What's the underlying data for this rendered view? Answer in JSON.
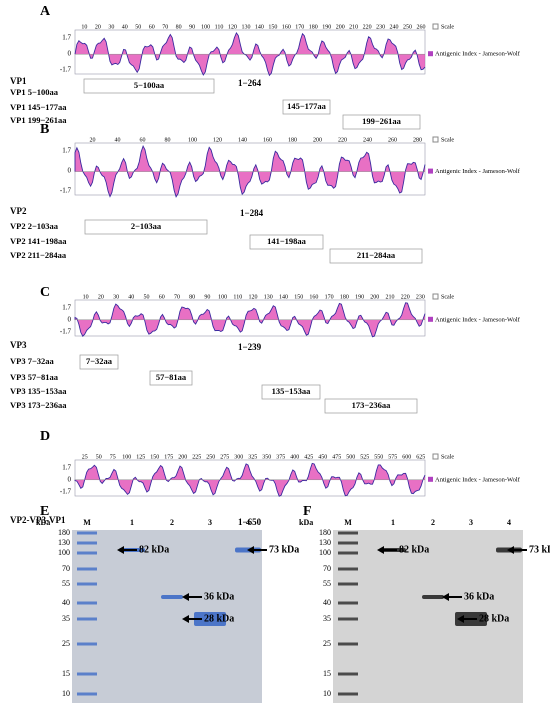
{
  "panels": [
    {
      "label": "A",
      "legend_scale": "Scale",
      "legend_index": "Antigenic Index - Jameson-Wolf",
      "yticks": [
        "1.7",
        "0",
        "-1.7"
      ],
      "xticks": [
        10,
        20,
        30,
        40,
        50,
        60,
        70,
        80,
        90,
        100,
        110,
        120,
        130,
        140,
        150,
        160,
        170,
        180,
        190,
        200,
        210,
        220,
        230,
        240,
        250,
        260
      ],
      "protein": "VP1",
      "range": "1−264",
      "fragments": [
        {
          "name": "VP1 5−100aa",
          "box": "5−100aa"
        },
        {
          "name": "VP1 145−177aa",
          "box": "145−177aa"
        },
        {
          "name": "VP1 199−261aa",
          "box": "199−261aa"
        }
      ]
    },
    {
      "label": "B",
      "legend_scale": "Scale",
      "legend_index": "Antigenic Index - Jameson-Wolf",
      "yticks": [
        "1.7",
        "0",
        "-1.7"
      ],
      "xticks": [
        20,
        40,
        60,
        80,
        100,
        120,
        140,
        160,
        180,
        200,
        220,
        240,
        260,
        280
      ],
      "protein": "VP2",
      "range": "1−284",
      "fragments": [
        {
          "name": "VP2 2−103aa",
          "box": "2−103aa"
        },
        {
          "name": "VP2 141−198aa",
          "box": "141−198aa"
        },
        {
          "name": "VP2 211−284aa",
          "box": "211−284aa"
        }
      ]
    },
    {
      "label": "C",
      "legend_scale": "Scale",
      "legend_index": "Antigenic Index - Jameson-Wolf",
      "yticks": [
        "1.7",
        "0",
        "-1.7"
      ],
      "xticks": [
        10,
        20,
        30,
        40,
        50,
        60,
        70,
        80,
        90,
        100,
        110,
        120,
        130,
        140,
        150,
        160,
        170,
        180,
        190,
        200,
        210,
        220,
        230
      ],
      "protein": "VP3",
      "range": "1−239",
      "fragments": [
        {
          "name": "VP3 7−32aa",
          "box": "7−32aa"
        },
        {
          "name": "VP3 57−81aa",
          "box": "57−81aa"
        },
        {
          "name": "VP3 135−153aa",
          "box": "135−153aa"
        },
        {
          "name": "VP3 173−236aa",
          "box": "173−236aa"
        }
      ]
    },
    {
      "label": "D",
      "legend_scale": "Scale",
      "legend_index": "Antigenic Index - Jameson-Wolf",
      "yticks": [
        "1.7",
        "0",
        "-1.7"
      ],
      "xticks": [
        25,
        50,
        75,
        100,
        125,
        150,
        175,
        200,
        225,
        250,
        275,
        300,
        325,
        350,
        375,
        400,
        425,
        450,
        475,
        500,
        525,
        550,
        575,
        600,
        625
      ],
      "protein": "VP2-VP3-VP1",
      "range": "1−650",
      "fragments": []
    }
  ],
  "gels": [
    {
      "label": "E",
      "unit": "kDa",
      "markers": [
        "180",
        "130",
        "100",
        "70",
        "55",
        "40",
        "35",
        "25",
        "15",
        "10"
      ],
      "lanes": [
        "M",
        "1",
        "2",
        "3",
        "4"
      ],
      "annotations": [
        "82 kDa",
        "36 kDa",
        "28 kDa",
        "73 kDa"
      ]
    },
    {
      "label": "F",
      "unit": "kDa",
      "markers": [
        "180",
        "130",
        "100",
        "70",
        "55",
        "40",
        "35",
        "25",
        "15",
        "10"
      ],
      "lanes": [
        "M",
        "1",
        "2",
        "3",
        "4"
      ],
      "annotations": [
        "82 kDa",
        "36 kDa",
        "28 kDa",
        "73 kDa"
      ]
    }
  ]
}
